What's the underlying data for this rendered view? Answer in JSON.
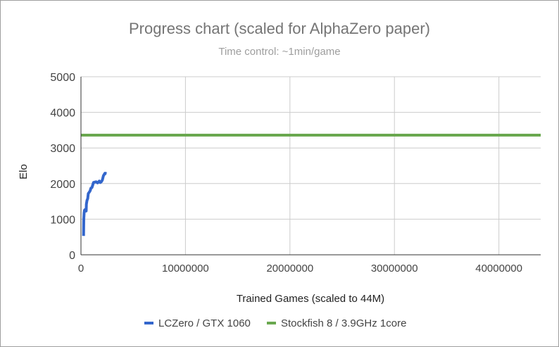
{
  "chart_data": {
    "type": "line",
    "title": "Progress chart (scaled for AlphaZero paper)",
    "subtitle": "Time control: ~1min/game",
    "xlabel": "Trained Games  (scaled to 44M)",
    "ylabel": "Elo",
    "xlim": [
      0,
      44000000
    ],
    "ylim": [
      0,
      5000
    ],
    "x_ticks": [
      0,
      10000000,
      20000000,
      30000000,
      40000000
    ],
    "x_tick_labels": [
      "0",
      "10000000",
      "20000000",
      "30000000",
      "40000000"
    ],
    "y_ticks": [
      0,
      1000,
      2000,
      3000,
      4000,
      5000
    ],
    "y_tick_labels": [
      "0",
      "1000",
      "2000",
      "3000",
      "4000",
      "5000"
    ],
    "grid": true,
    "legend_position": "bottom",
    "series": [
      {
        "name": "LCZero / GTX 1060",
        "color": "#3366cc",
        "x": [
          250000,
          270000,
          300000,
          340000,
          400000,
          500000,
          520000,
          580000,
          650000,
          700000,
          800000,
          880000,
          950000,
          1050000,
          1150000,
          1200000,
          1300000,
          1450000,
          1600000,
          1750000,
          1850000,
          1950000,
          2050000,
          2150000,
          2300000,
          2450000
        ],
        "y": [
          530,
          1000,
          1180,
          1250,
          1270,
          1230,
          1420,
          1530,
          1580,
          1720,
          1760,
          1800,
          1870,
          1890,
          1980,
          2030,
          2040,
          2050,
          2020,
          2070,
          2030,
          2050,
          2100,
          2220,
          2290,
          2280
        ]
      },
      {
        "name": "Stockfish 8 / 3.9GHz 1core",
        "color": "#6aa84f",
        "x": [
          0,
          44000000
        ],
        "y": [
          3360,
          3360
        ]
      }
    ]
  }
}
